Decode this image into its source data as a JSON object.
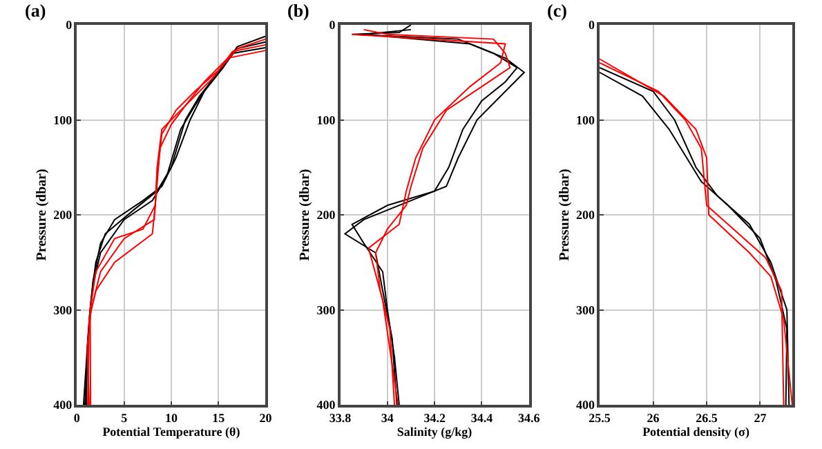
{
  "chart_data": [
    {
      "type": "line",
      "title": "(a)",
      "xlabel": "Potential Temperature (θ)",
      "ylabel": "Pressure (dbar)",
      "xlim": [
        0,
        20
      ],
      "xticks": [
        0,
        5,
        10,
        15,
        20
      ],
      "ylim": [
        400,
        0
      ],
      "yticks": [
        0,
        100,
        200,
        300,
        400
      ],
      "grid": true,
      "line_style": "solid",
      "series": [
        {
          "color": "#000000",
          "x": [
            20,
            17,
            15,
            13,
            11.5,
            10,
            8.5,
            6,
            3,
            2,
            1.5,
            1.2,
            0.85
          ],
          "values": [
            18,
            25,
            50,
            75,
            100,
            150,
            175,
            195,
            220,
            250,
            290,
            330,
            400
          ]
        },
        {
          "color": "#000000",
          "x": [
            20,
            17,
            15.5,
            13.5,
            12,
            10.5,
            9,
            7,
            4,
            2.5,
            1.7,
            1.3,
            0.7
          ],
          "values": [
            12,
            23,
            45,
            70,
            100,
            140,
            170,
            185,
            205,
            230,
            270,
            310,
            400
          ]
        },
        {
          "color": "#000000",
          "x": [
            20,
            16.5,
            14.5,
            12.5,
            11,
            9.5,
            8,
            5,
            2.5,
            1.8,
            1.4,
            1.1,
            1.0
          ],
          "values": [
            24,
            30,
            55,
            85,
            110,
            160,
            185,
            205,
            240,
            270,
            300,
            340,
            400
          ]
        },
        {
          "color": "#ff0000",
          "x": [
            20,
            17,
            15,
            12.5,
            10.5,
            9,
            8.5,
            8.2,
            5,
            2.5,
            1.5,
            1.1,
            1.3
          ],
          "values": [
            15,
            25,
            48,
            70,
            90,
            115,
            160,
            205,
            225,
            260,
            300,
            340,
            400
          ]
        },
        {
          "color": "#ff0000",
          "x": [
            20,
            16.5,
            14.5,
            12,
            10,
            9,
            8.5,
            8.3,
            7,
            4,
            2,
            1.4,
            1.45
          ],
          "values": [
            21,
            28,
            55,
            80,
            100,
            110,
            150,
            190,
            215,
            225,
            260,
            300,
            400
          ]
        },
        {
          "color": "#ff0000",
          "x": [
            20,
            16,
            13.5,
            11.5,
            10,
            8.8,
            8.4,
            8,
            4,
            2,
            1.3,
            1.15
          ],
          "values": [
            27,
            35,
            60,
            85,
            105,
            130,
            180,
            220,
            250,
            280,
            310,
            400
          ]
        }
      ]
    },
    {
      "type": "line",
      "title": "(b)",
      "xlabel": "Salinity (g/kg)",
      "ylabel": "Pressure (dbar)",
      "xlim": [
        33.8,
        34.6
      ],
      "xticks": [
        33.8,
        34,
        34.2,
        34.4,
        34.6
      ],
      "ylim": [
        400,
        0
      ],
      "yticks": [
        0,
        100,
        200,
        300,
        400
      ],
      "grid": true,
      "line_style": "solid",
      "series": [
        {
          "color": "#000000",
          "x": [
            34.1,
            34.05,
            33.85,
            34.3,
            34.45,
            34.55,
            34.5,
            34.4,
            34.32,
            34.26,
            34.2,
            34.0,
            33.85,
            33.9,
            33.98,
            34.0,
            34.03,
            34.05
          ],
          "values": [
            0,
            8,
            10,
            15,
            30,
            45,
            60,
            80,
            110,
            150,
            175,
            190,
            210,
            230,
            260,
            300,
            350,
            400
          ]
        },
        {
          "color": "#000000",
          "x": [
            34.1,
            33.9,
            34.35,
            34.5,
            34.58,
            34.5,
            34.38,
            34.3,
            34.25,
            34.1,
            33.9,
            33.82,
            33.95,
            33.98,
            34.02,
            34.04
          ],
          "values": [
            5,
            10,
            20,
            35,
            50,
            70,
            100,
            140,
            170,
            185,
            205,
            220,
            240,
            280,
            330,
            400
          ]
        },
        {
          "color": "#ff0000",
          "x": [
            33.9,
            34.0,
            34.45,
            34.5,
            34.52,
            34.4,
            34.25,
            34.15,
            34.1,
            34.08,
            34.0,
            33.95,
            33.97,
            34.01,
            34.03
          ],
          "values": [
            5,
            10,
            15,
            30,
            45,
            65,
            90,
            130,
            170,
            190,
            215,
            240,
            280,
            320,
            400
          ]
        },
        {
          "color": "#ff0000",
          "x": [
            33.85,
            34.5,
            34.48,
            34.35,
            34.2,
            34.12,
            34.08,
            34.05,
            33.92,
            33.98,
            34.045
          ],
          "values": [
            10,
            20,
            40,
            65,
            100,
            140,
            175,
            210,
            235,
            290,
            400
          ]
        }
      ]
    },
    {
      "type": "line",
      "title": "(c)",
      "xlabel": "Potential density (σ)",
      "ylabel": "Pressure (dbar)",
      "xlim": [
        25.5,
        27.3
      ],
      "xticks": [
        25.5,
        26,
        26.5,
        27
      ],
      "ylim": [
        400,
        0
      ],
      "yticks": [
        0,
        100,
        200,
        300,
        400
      ],
      "grid": true,
      "line_style": "solid",
      "series": [
        {
          "color": "#000000",
          "x": [
            25.5,
            26,
            26.2,
            26.4,
            26.6,
            26.9,
            27.1,
            27.25,
            27.27
          ],
          "values": [
            45,
            70,
            100,
            150,
            180,
            210,
            250,
            300,
            400
          ]
        },
        {
          "color": "#000000",
          "x": [
            25.5,
            25.9,
            26.15,
            26.45,
            26.7,
            27.0,
            27.15,
            27.25,
            27.24
          ],
          "values": [
            50,
            75,
            110,
            165,
            190,
            225,
            270,
            320,
            400
          ]
        },
        {
          "color": "#ff0000",
          "x": [
            25.5,
            26.05,
            26.3,
            26.45,
            26.5,
            26.8,
            27.05,
            27.2,
            27.22
          ],
          "values": [
            40,
            70,
            100,
            130,
            190,
            220,
            245,
            280,
            400
          ]
        },
        {
          "color": "#ff0000",
          "x": [
            25.5,
            26.1,
            26.4,
            26.5,
            26.52,
            26.9,
            27.1,
            27.22,
            27.3
          ],
          "values": [
            36,
            75,
            110,
            140,
            200,
            240,
            265,
            310,
            400
          ]
        }
      ]
    }
  ]
}
